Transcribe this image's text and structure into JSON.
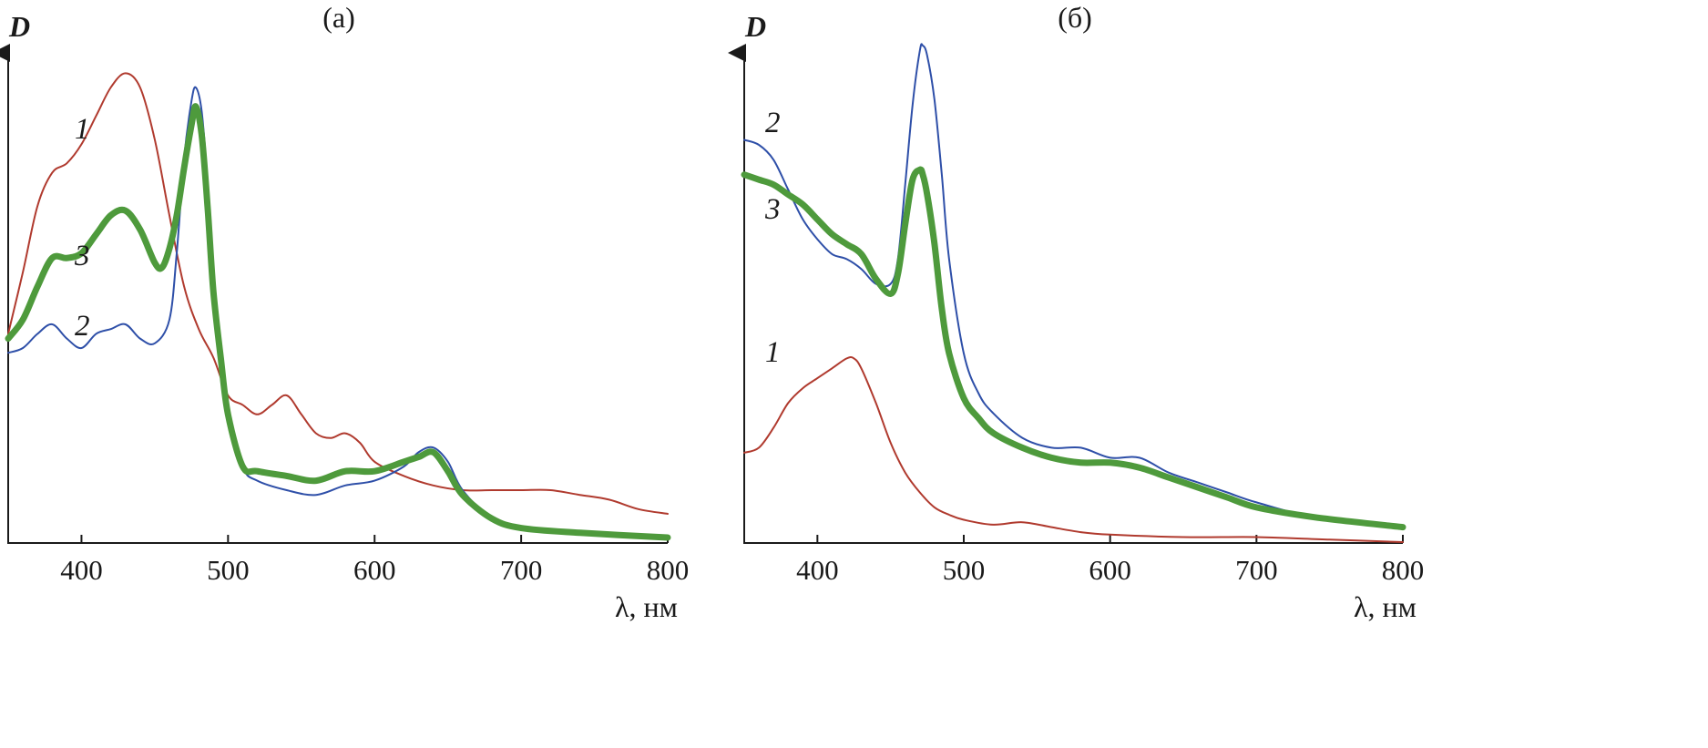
{
  "chart_data": [
    {
      "type": "line",
      "title": "(а)",
      "xlabel": "λ, нм",
      "ylabel": "D",
      "xlim": [
        350,
        800
      ],
      "ylim": [
        0,
        1.0
      ],
      "xticks": [
        400,
        500,
        600,
        700,
        800
      ],
      "grid": false,
      "series": [
        {
          "name": "1",
          "label": "1",
          "color": "#b03a2e",
          "width": 2,
          "x": [
            350,
            360,
            370,
            380,
            390,
            400,
            410,
            420,
            430,
            440,
            450,
            460,
            470,
            480,
            490,
            500,
            510,
            520,
            530,
            540,
            550,
            560,
            570,
            580,
            590,
            600,
            620,
            640,
            660,
            680,
            700,
            720,
            740,
            760,
            780,
            800
          ],
          "y": [
            0.43,
            0.56,
            0.7,
            0.77,
            0.79,
            0.83,
            0.89,
            0.95,
            0.98,
            0.95,
            0.84,
            0.68,
            0.53,
            0.44,
            0.38,
            0.3,
            0.28,
            0.26,
            0.28,
            0.3,
            0.26,
            0.22,
            0.21,
            0.22,
            0.2,
            0.16,
            0.13,
            0.11,
            0.1,
            0.1,
            0.1,
            0.1,
            0.09,
            0.08,
            0.06,
            0.05
          ]
        },
        {
          "name": "2",
          "label": "2",
          "color": "#2e4fa8",
          "width": 2,
          "x": [
            350,
            360,
            370,
            380,
            390,
            400,
            410,
            420,
            430,
            440,
            450,
            460,
            465,
            470,
            475,
            478,
            482,
            486,
            490,
            495,
            500,
            510,
            520,
            540,
            560,
            580,
            600,
            620,
            630,
            640,
            650,
            660,
            680,
            700,
            740,
            800
          ],
          "y": [
            0.39,
            0.4,
            0.43,
            0.45,
            0.42,
            0.4,
            0.43,
            0.44,
            0.45,
            0.42,
            0.41,
            0.46,
            0.6,
            0.8,
            0.92,
            0.95,
            0.9,
            0.75,
            0.55,
            0.4,
            0.28,
            0.15,
            0.12,
            0.1,
            0.09,
            0.11,
            0.12,
            0.15,
            0.18,
            0.19,
            0.16,
            0.1,
            0.04,
            0.02,
            0.01,
            0.0
          ]
        },
        {
          "name": "3",
          "label": "3",
          "color": "#4e9a3c",
          "width": 7,
          "x": [
            350,
            360,
            370,
            380,
            390,
            400,
            410,
            420,
            430,
            440,
            450,
            455,
            460,
            465,
            470,
            475,
            478,
            482,
            486,
            490,
            495,
            500,
            510,
            520,
            540,
            560,
            580,
            600,
            620,
            630,
            640,
            650,
            660,
            680,
            700,
            740,
            800
          ],
          "y": [
            0.42,
            0.46,
            0.53,
            0.59,
            0.59,
            0.6,
            0.64,
            0.68,
            0.69,
            0.65,
            0.58,
            0.57,
            0.61,
            0.68,
            0.78,
            0.87,
            0.91,
            0.85,
            0.7,
            0.52,
            0.38,
            0.26,
            0.15,
            0.14,
            0.13,
            0.12,
            0.14,
            0.14,
            0.16,
            0.17,
            0.18,
            0.14,
            0.09,
            0.04,
            0.02,
            0.01,
            0.0
          ]
        }
      ],
      "annotations": [
        {
          "text": "1",
          "series": "1"
        },
        {
          "text": "3",
          "series": "3"
        },
        {
          "text": "2",
          "series": "2"
        }
      ]
    },
    {
      "type": "line",
      "title": "(б)",
      "xlabel": "λ, нм",
      "ylabel": "D",
      "xlim": [
        350,
        800
      ],
      "ylim": [
        0,
        1.0
      ],
      "xticks": [
        400,
        500,
        600,
        700,
        800
      ],
      "grid": false,
      "series": [
        {
          "name": "1",
          "label": "1",
          "color": "#b03a2e",
          "width": 2,
          "x": [
            350,
            360,
            370,
            380,
            390,
            400,
            410,
            420,
            425,
            430,
            440,
            450,
            460,
            470,
            480,
            490,
            500,
            520,
            540,
            560,
            580,
            600,
            650,
            700,
            750,
            800
          ],
          "y": [
            0.18,
            0.19,
            0.23,
            0.28,
            0.31,
            0.33,
            0.35,
            0.37,
            0.37,
            0.35,
            0.28,
            0.2,
            0.14,
            0.1,
            0.07,
            0.055,
            0.045,
            0.035,
            0.04,
            0.03,
            0.02,
            0.015,
            0.01,
            0.01,
            0.005,
            0.0
          ]
        },
        {
          "name": "2",
          "label": "2",
          "color": "#2e4fa8",
          "width": 2,
          "x": [
            350,
            360,
            370,
            380,
            390,
            400,
            410,
            420,
            430,
            440,
            450,
            455,
            460,
            465,
            470,
            472,
            475,
            480,
            485,
            490,
            500,
            510,
            520,
            540,
            560,
            580,
            600,
            620,
            640,
            660,
            680,
            700,
            740,
            800
          ],
          "y": [
            0.81,
            0.8,
            0.77,
            0.71,
            0.65,
            0.61,
            0.58,
            0.57,
            0.55,
            0.52,
            0.52,
            0.57,
            0.72,
            0.88,
            0.99,
            1.0,
            0.98,
            0.89,
            0.74,
            0.57,
            0.38,
            0.3,
            0.26,
            0.21,
            0.19,
            0.19,
            0.17,
            0.17,
            0.14,
            0.12,
            0.1,
            0.08,
            0.05,
            0.03
          ]
        },
        {
          "name": "3",
          "label": "3",
          "color": "#4e9a3c",
          "width": 7,
          "x": [
            350,
            360,
            370,
            380,
            390,
            400,
            410,
            420,
            430,
            440,
            450,
            455,
            460,
            465,
            470,
            472,
            475,
            480,
            485,
            490,
            500,
            510,
            520,
            540,
            560,
            580,
            600,
            620,
            640,
            660,
            680,
            700,
            740,
            800
          ],
          "y": [
            0.74,
            0.73,
            0.72,
            0.7,
            0.68,
            0.65,
            0.62,
            0.6,
            0.58,
            0.53,
            0.5,
            0.54,
            0.64,
            0.73,
            0.75,
            0.74,
            0.7,
            0.6,
            0.47,
            0.38,
            0.29,
            0.25,
            0.22,
            0.19,
            0.17,
            0.16,
            0.16,
            0.15,
            0.13,
            0.11,
            0.09,
            0.07,
            0.05,
            0.03
          ]
        }
      ],
      "annotations": [
        {
          "text": "2",
          "series": "2"
        },
        {
          "text": "3",
          "series": "3"
        },
        {
          "text": "1",
          "series": "1"
        }
      ]
    }
  ]
}
